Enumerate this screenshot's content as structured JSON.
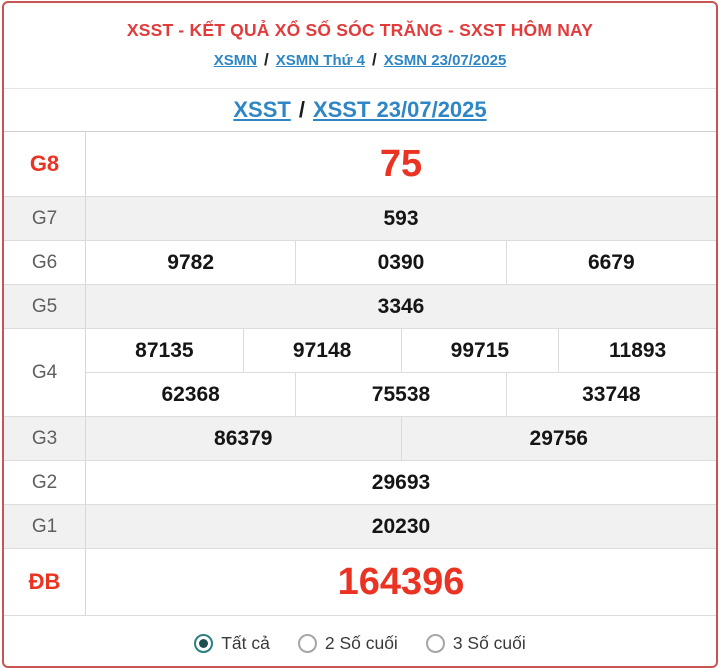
{
  "header": {
    "title": "XSST - KẾT QUẢ XỔ SỐ SÓC TRĂNG - SXST HÔM NAY",
    "breadcrumb": {
      "items": [
        "XSMN",
        "XSMN Thứ 4",
        "XSMN 23/07/2025"
      ],
      "separator": "/"
    },
    "subheading": {
      "items": [
        "XSST",
        "XSST 23/07/2025"
      ],
      "separator": "/"
    }
  },
  "table": {
    "rows": [
      {
        "label": "G8",
        "highlight": true,
        "tall": true,
        "shaded": false,
        "lines": [
          [
            "75"
          ]
        ]
      },
      {
        "label": "G7",
        "highlight": false,
        "tall": false,
        "shaded": true,
        "lines": [
          [
            "593"
          ]
        ]
      },
      {
        "label": "G6",
        "highlight": false,
        "tall": false,
        "shaded": false,
        "lines": [
          [
            "9782",
            "0390",
            "6679"
          ]
        ]
      },
      {
        "label": "G5",
        "highlight": false,
        "tall": false,
        "shaded": true,
        "lines": [
          [
            "3346"
          ]
        ]
      },
      {
        "label": "G4",
        "highlight": false,
        "tall": false,
        "shaded": false,
        "lines": [
          [
            "87135",
            "97148",
            "99715",
            "11893"
          ],
          [
            "62368",
            "75538",
            "33748"
          ]
        ]
      },
      {
        "label": "G3",
        "highlight": false,
        "tall": false,
        "shaded": true,
        "lines": [
          [
            "86379",
            "29756"
          ]
        ]
      },
      {
        "label": "G2",
        "highlight": false,
        "tall": false,
        "shaded": false,
        "lines": [
          [
            "29693"
          ]
        ]
      },
      {
        "label": "G1",
        "highlight": false,
        "tall": false,
        "shaded": true,
        "lines": [
          [
            "20230"
          ]
        ]
      },
      {
        "label": "ĐB",
        "highlight": true,
        "tall": true,
        "shaded": false,
        "lines": [
          [
            "164396"
          ]
        ]
      }
    ]
  },
  "footer": {
    "options": [
      {
        "label": "Tất cả",
        "selected": true
      },
      {
        "label": "2 Số cuối",
        "selected": false
      },
      {
        "label": "3 Số cuối",
        "selected": false
      }
    ]
  },
  "colors": {
    "title_red": "#e23b3b",
    "number_red": "#ea3323",
    "link_blue": "#2f86c5",
    "border_red": "#c95454",
    "radio_teal": "#2a7f7e",
    "shaded_row": "#f1f1f1"
  }
}
